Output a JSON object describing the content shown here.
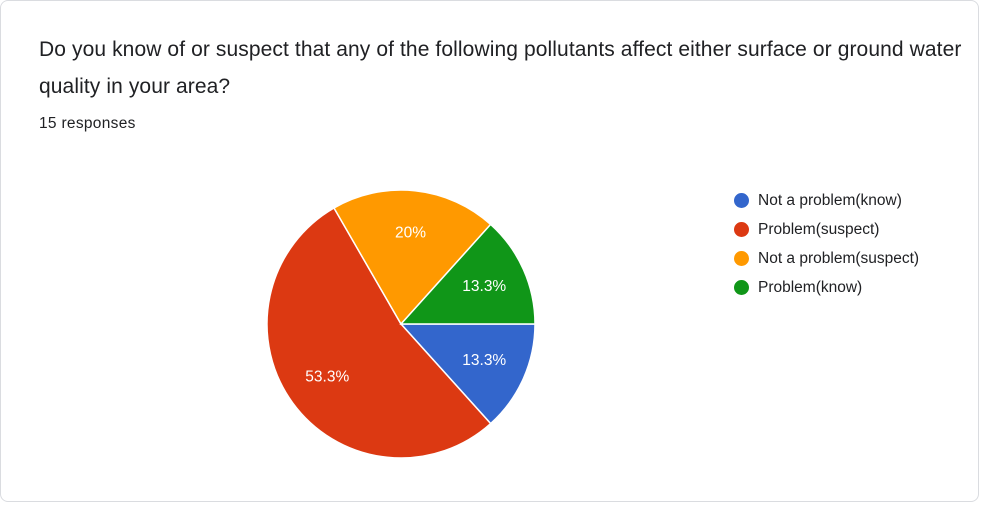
{
  "question": {
    "title": "Do you know of or suspect that any of the following pollutants affect either surface or ground water quality in your area?",
    "responses": "15 responses"
  },
  "chart_data": {
    "type": "pie",
    "title": "Do you know of or suspect that any of the following pollutants affect either surface or ground water quality in your area?",
    "total_responses": 15,
    "slices": [
      {
        "name": "Not a problem(know)",
        "value": 2,
        "percent_label": "13.3%",
        "color": "#3366cc"
      },
      {
        "name": "Problem(suspect)",
        "value": 8,
        "percent_label": "53.3%",
        "color": "#dc3912"
      },
      {
        "name": "Not a problem(suspect)",
        "value": 3,
        "percent_label": "20%",
        "color": "#ff9900"
      },
      {
        "name": "Problem(know)",
        "value": 2,
        "percent_label": "13.3%",
        "color": "#109618"
      }
    ],
    "legend_position": "right"
  }
}
